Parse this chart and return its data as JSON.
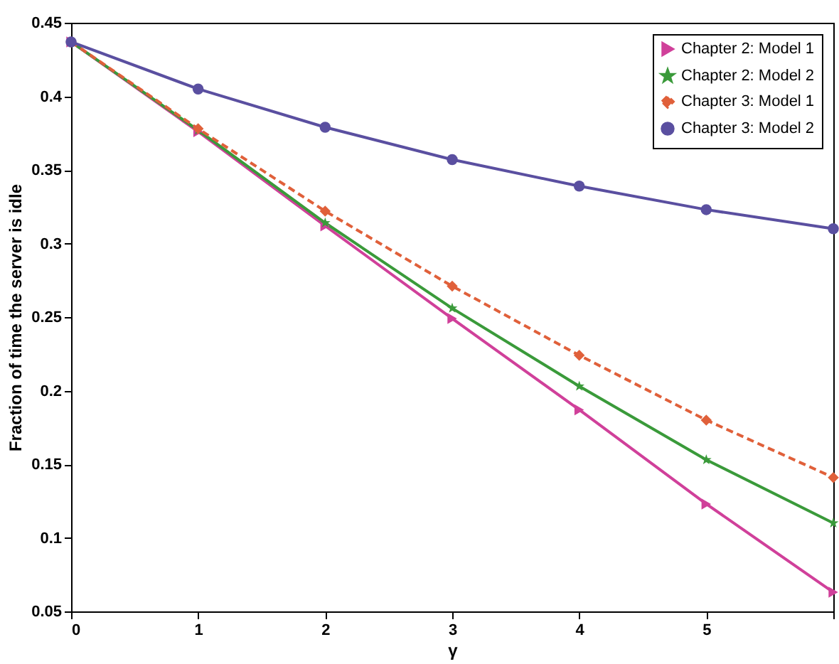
{
  "chart_data": {
    "type": "line",
    "xlabel": "γ",
    "ylabel": "Fraction of time the server is idle",
    "x": [
      0,
      1,
      2,
      3,
      4,
      5,
      6
    ],
    "xlim": [
      0,
      6
    ],
    "xticks": [
      0,
      1,
      2,
      3,
      4,
      5,
      {
        "value": 6,
        "label": null
      }
    ],
    "ylim": [
      0.05,
      0.45
    ],
    "yticks": [
      0.05,
      0.1,
      0.15,
      0.2,
      0.25,
      0.3,
      0.35,
      0.4,
      0.45
    ],
    "legend": "top right",
    "grid": false,
    "series": [
      {
        "name": "Chapter 2: Model 1",
        "color": "#d0409a",
        "marker": "triangle",
        "line_style": "solid",
        "values": [
          0.437,
          0.376,
          0.312,
          0.249,
          0.187,
          0.123,
          0.063
        ]
      },
      {
        "name": "Chapter 2: Model 2",
        "color": "#3a9a3a",
        "marker": "star",
        "line_style": "solid",
        "values": [
          0.437,
          0.377,
          0.314,
          0.256,
          0.203,
          0.153,
          0.11
        ]
      },
      {
        "name": "Chapter 3: Model 1",
        "color": "#e0603a",
        "marker": "diamond",
        "line_style": "dashed",
        "values": [
          0.437,
          0.378,
          0.322,
          0.271,
          0.224,
          0.18,
          0.141
        ]
      },
      {
        "name": "Chapter 3: Model 2",
        "color": "#5a4fa0",
        "marker": "circle",
        "line_style": "solid",
        "values": [
          0.437,
          0.405,
          0.379,
          0.357,
          0.339,
          0.323,
          0.31
        ]
      }
    ]
  }
}
